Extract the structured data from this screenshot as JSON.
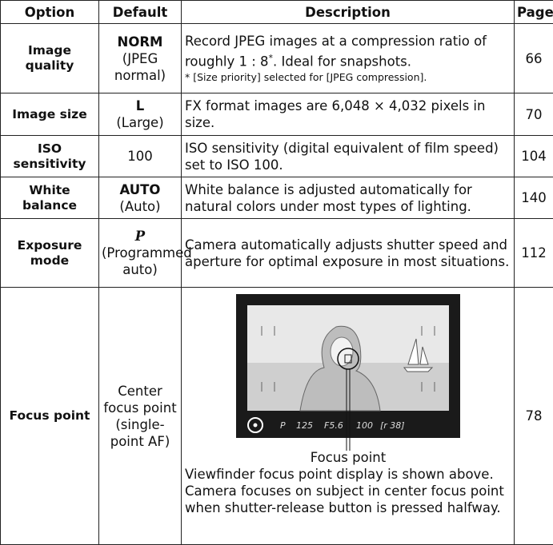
{
  "table": {
    "header": [
      "Option",
      "Default",
      "Description",
      "Page"
    ],
    "rows": [
      {
        "option": "Image quality",
        "default": [
          "NORM",
          "(JPEG normal)"
        ],
        "description": [
          "Record JPEG images at a compression ratio of roughly 1 : 8",
          "*",
          ". Ideal for snapshots."
        ],
        "note": "* [Size priority] selected for [JPEG compression].",
        "page": "66"
      },
      {
        "option": "Image size",
        "default": [
          "L",
          "(Large)"
        ],
        "description": [
          "FX format images are 6,048 × 4,032 pixels in size."
        ],
        "page": "70"
      },
      {
        "option": "ISO sensitivity",
        "default": [
          "100"
        ],
        "description": [
          "ISO sensitivity (digital equivalent of film speed) set to ISO 100."
        ],
        "page": "104"
      },
      {
        "option": "White balance",
        "default": [
          "AUTO",
          "(Auto)"
        ],
        "description": [
          "White balance is adjusted automatically for natural colors under most types of lighting."
        ],
        "page": "140"
      },
      {
        "option": "Exposure mode",
        "default": [
          "P",
          "(Programmed auto)"
        ],
        "description": [
          "Camera automatically adjusts shutter speed and aperture for optimal exposure in most situations."
        ],
        "page": "112"
      },
      {
        "option": "Focus point",
        "default": [
          "Center focus point (single-point AF)"
        ],
        "figure": {
          "readout": [
            "P",
            "125",
            "F5.6",
            "100",
            "[r 38]"
          ],
          "caption": "Focus point"
        },
        "description": [
          "Viewfinder focus point display is shown above.  Camera focuses on subject in center focus point when shutter-release button is pressed halfway."
        ],
        "page": "78"
      }
    ]
  }
}
